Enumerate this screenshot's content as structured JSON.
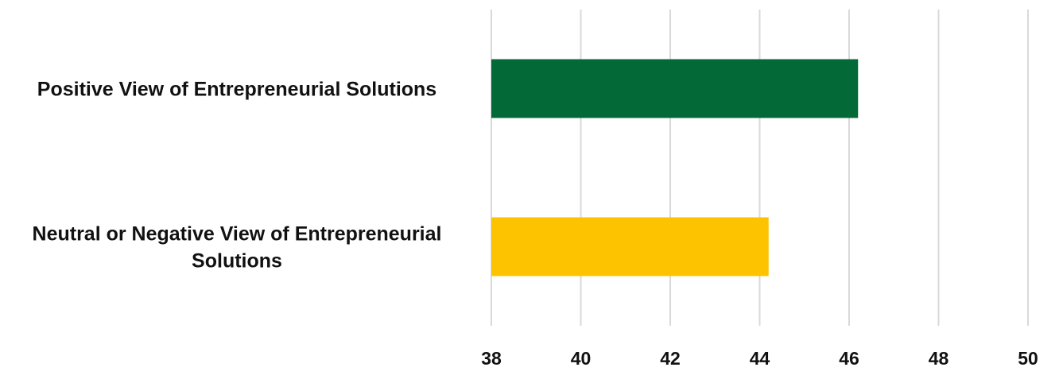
{
  "chart_data": {
    "type": "bar",
    "orientation": "horizontal",
    "title": "",
    "xlabel": "",
    "ylabel": "",
    "categories": [
      [
        "Positive View of Entrepreneurial Solutions"
      ],
      [
        "Neutral or Negative View of Entrepreneurial",
        "Solutions"
      ]
    ],
    "values": [
      46.2,
      44.2
    ],
    "colors": [
      "#026937",
      "#FDC300"
    ],
    "xlim": [
      38,
      50
    ],
    "xticks": [
      "38",
      "40",
      "42",
      "44",
      "46",
      "48",
      "50"
    ],
    "grid": true,
    "legend": "none"
  }
}
